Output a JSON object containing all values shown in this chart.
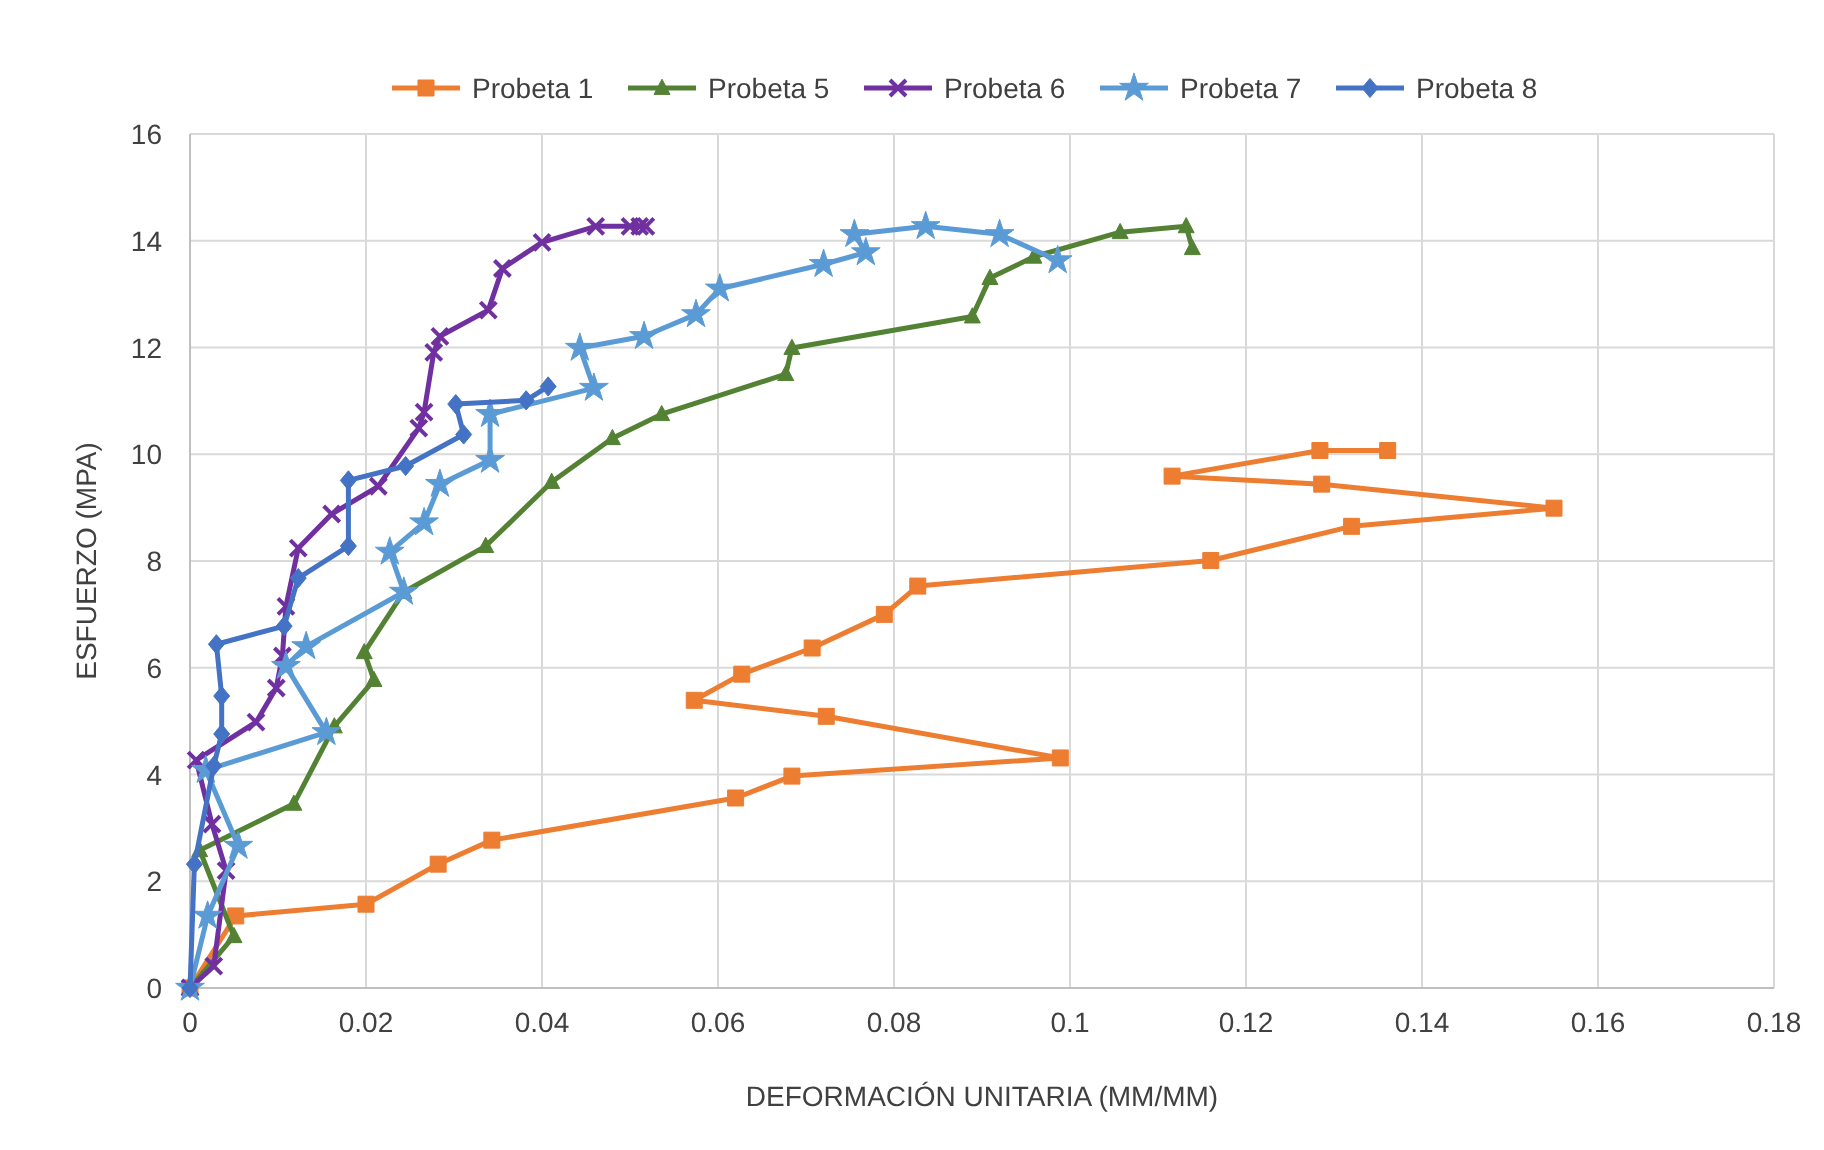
{
  "chart_data": {
    "type": "line",
    "xlabel": "DEFORMACIÓN UNITARIA (MM/MM)",
    "ylabel": "ESFUERZO (MPA)",
    "xlim": [
      0,
      0.18
    ],
    "xticks": [
      0,
      0.02,
      0.04,
      0.06,
      0.08,
      0.1,
      0.12,
      0.14,
      0.16,
      0.18
    ],
    "ylim": [
      0,
      16
    ],
    "yticks": [
      0,
      2,
      4,
      6,
      8,
      10,
      12,
      14,
      16
    ],
    "grid": true,
    "legend": "top",
    "line_style": "solid",
    "series": [
      {
        "name": "Probeta 1",
        "color": "#ed7d31",
        "marker": "square",
        "x": [
          0,
          0.0052,
          0.02,
          0.0282,
          0.0343,
          0.062,
          0.0684,
          0.0989,
          0.0723,
          0.0573,
          0.0627,
          0.0707,
          0.0789,
          0.0827,
          0.116,
          0.132,
          0.155,
          0.1286,
          0.1116,
          0.1284,
          0.1361
        ],
        "values": [
          0,
          1.35,
          1.57,
          2.32,
          2.77,
          3.56,
          3.97,
          4.31,
          5.09,
          5.39,
          5.88,
          6.37,
          7.0,
          7.53,
          8.01,
          8.65,
          8.99,
          9.44,
          9.59,
          10.07,
          10.07
        ]
      },
      {
        "name": "Probeta 5",
        "color": "#548235",
        "marker": "triangle",
        "x": [
          0,
          0.005,
          0.0011,
          0.0118,
          0.0164,
          0.0209,
          0.0198,
          0.0243,
          0.0336,
          0.0411,
          0.048,
          0.0536,
          0.0677,
          0.0684,
          0.0889,
          0.0909,
          0.0959,
          0.1057,
          0.1132,
          0.1139
        ],
        "values": [
          0,
          0.97,
          2.58,
          3.45,
          4.9,
          5.77,
          6.29,
          7.42,
          8.28,
          9.48,
          10.3,
          10.75,
          11.5,
          11.99,
          12.58,
          13.3,
          13.7,
          14.16,
          14.27,
          13.86
        ]
      },
      {
        "name": "Probeta 6",
        "color": "#7030a0",
        "marker": "cross",
        "x": [
          0,
          0.0027,
          0.0041,
          0.0025,
          0.0007,
          0.0075,
          0.0098,
          0.0105,
          0.0109,
          0.0123,
          0.0161,
          0.0214,
          0.026,
          0.0266,
          0.0277,
          0.0284,
          0.0339,
          0.0355,
          0.04,
          0.0461,
          0.05,
          0.0511,
          0.0518
        ],
        "values": [
          0,
          0.41,
          2.2,
          3.07,
          4.27,
          4.98,
          5.62,
          6.22,
          7.15,
          8.24,
          8.88,
          9.4,
          10.49,
          10.79,
          11.91,
          12.21,
          12.7,
          13.48,
          13.97,
          14.27,
          14.27,
          14.27,
          14.27
        ]
      },
      {
        "name": "Probeta 7",
        "color": "#5b9bd5",
        "marker": "star",
        "x": [
          0,
          0.002,
          0.0055,
          0.0018,
          0.0155,
          0.0109,
          0.0132,
          0.0243,
          0.0227,
          0.0266,
          0.0284,
          0.0341,
          0.0341,
          0.0459,
          0.0443,
          0.0516,
          0.0575,
          0.0602,
          0.072,
          0.0768,
          0.0755,
          0.0836,
          0.092,
          0.0986
        ],
        "values": [
          0,
          1.35,
          2.66,
          4.08,
          4.79,
          6.03,
          6.4,
          7.42,
          8.17,
          8.72,
          9.44,
          9.89,
          10.75,
          11.24,
          11.99,
          12.21,
          12.62,
          13.1,
          13.56,
          13.78,
          14.12,
          14.27,
          14.12,
          13.63
        ]
      },
      {
        "name": "Probeta 8",
        "color": "#4472c4",
        "marker": "diamond",
        "x": [
          0,
          0.0005,
          0.0027,
          0.0036,
          0.0036,
          0.003,
          0.0107,
          0.0123,
          0.018,
          0.018,
          0.0245,
          0.0311,
          0.0302,
          0.0382,
          0.0407
        ],
        "values": [
          0,
          2.32,
          4.16,
          4.76,
          5.47,
          6.44,
          6.78,
          7.68,
          8.28,
          9.51,
          9.78,
          10.37,
          10.94,
          11.01,
          11.27
        ]
      }
    ]
  }
}
